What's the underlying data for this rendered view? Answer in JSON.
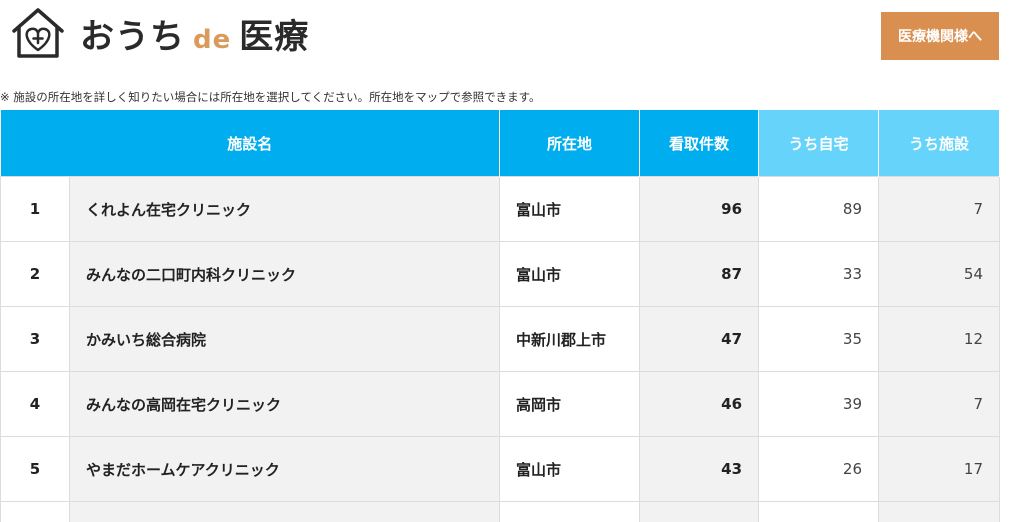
{
  "header": {
    "logo_icon": "house-heart-cross-icon",
    "logo_part1": "おうち",
    "logo_de": "de",
    "logo_part2": "医療",
    "cta_label": "医療機関様へ"
  },
  "note": "※ 施設の所在地を詳しく知りたい場合には所在地を選択してください。所在地をマップで参照できます。",
  "colors": {
    "header_blue": "#00aeef",
    "header_light_blue": "#66d3fa",
    "cta_orange": "#d98f4f",
    "logo_de_orange": "#d99a5a"
  },
  "table": {
    "columns": {
      "name": "施設名",
      "location": "所在地",
      "total": "看取件数",
      "home": "うち自宅",
      "facility": "うち施設"
    },
    "rows": [
      {
        "rank": "1",
        "name": "くれよん在宅クリニック",
        "location": "富山市",
        "total": "96",
        "home": "89",
        "facility": "7"
      },
      {
        "rank": "2",
        "name": "みんなの二口町内科クリニック",
        "location": "富山市",
        "total": "87",
        "home": "33",
        "facility": "54"
      },
      {
        "rank": "3",
        "name": "かみいち総合病院",
        "location": "中新川郡上市",
        "total": "47",
        "home": "35",
        "facility": "12"
      },
      {
        "rank": "4",
        "name": "みんなの高岡在宅クリニック",
        "location": "高岡市",
        "total": "46",
        "home": "39",
        "facility": "7"
      },
      {
        "rank": "5",
        "name": "やまだホームケアクリニック",
        "location": "富山市",
        "total": "43",
        "home": "26",
        "facility": "17"
      }
    ]
  }
}
